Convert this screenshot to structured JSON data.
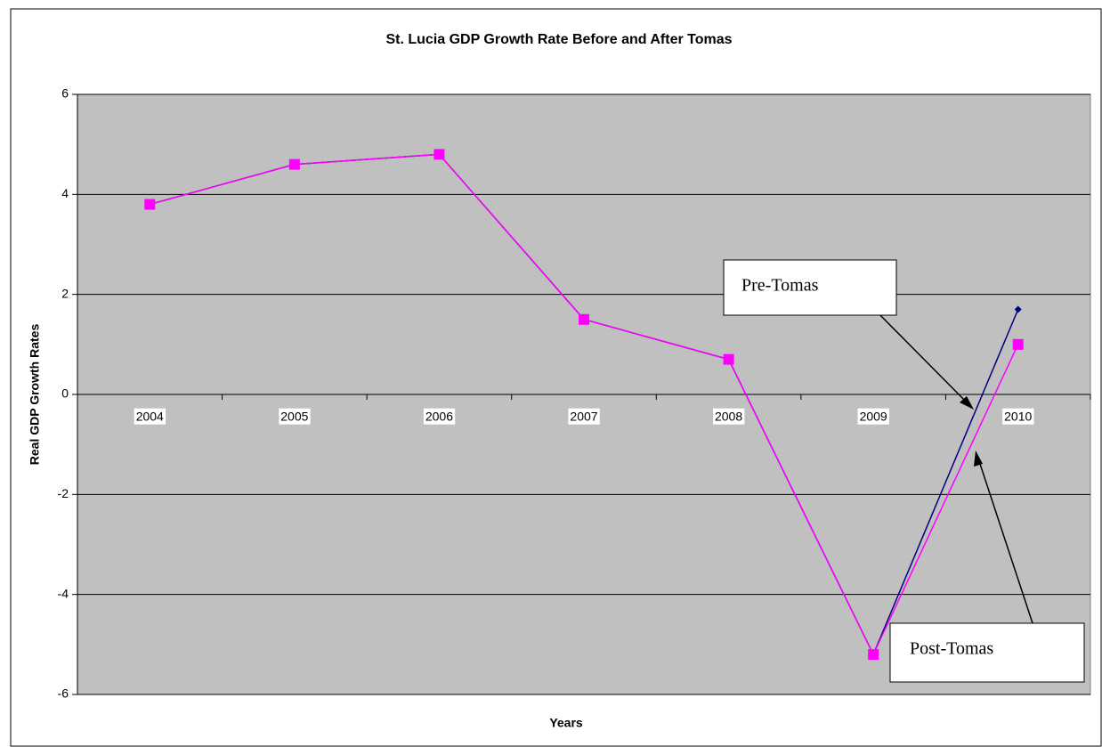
{
  "chart_data": {
    "type": "line",
    "title": "St. Lucia GDP Growth Rate Before and After Tomas",
    "x_label": "Years",
    "y_label": "Real GDP Growth Rates",
    "categories": [
      "2004",
      "2005",
      "2006",
      "2007",
      "2008",
      "2009",
      "2010"
    ],
    "series": [
      {
        "name": "Pre-Tomas",
        "color": "#000080",
        "values": [
          3.8,
          4.6,
          4.8,
          1.5,
          0.7,
          -5.2,
          1.7
        ]
      },
      {
        "name": "Post-Tomas",
        "color": "#ff00ff",
        "values": [
          3.8,
          4.6,
          4.8,
          1.5,
          0.7,
          -5.2,
          1.0
        ]
      }
    ],
    "ylim": [
      -6,
      6
    ],
    "yticks": [
      -6,
      -4,
      -2,
      0,
      2,
      4,
      6
    ],
    "grid": true,
    "legend": false
  }
}
